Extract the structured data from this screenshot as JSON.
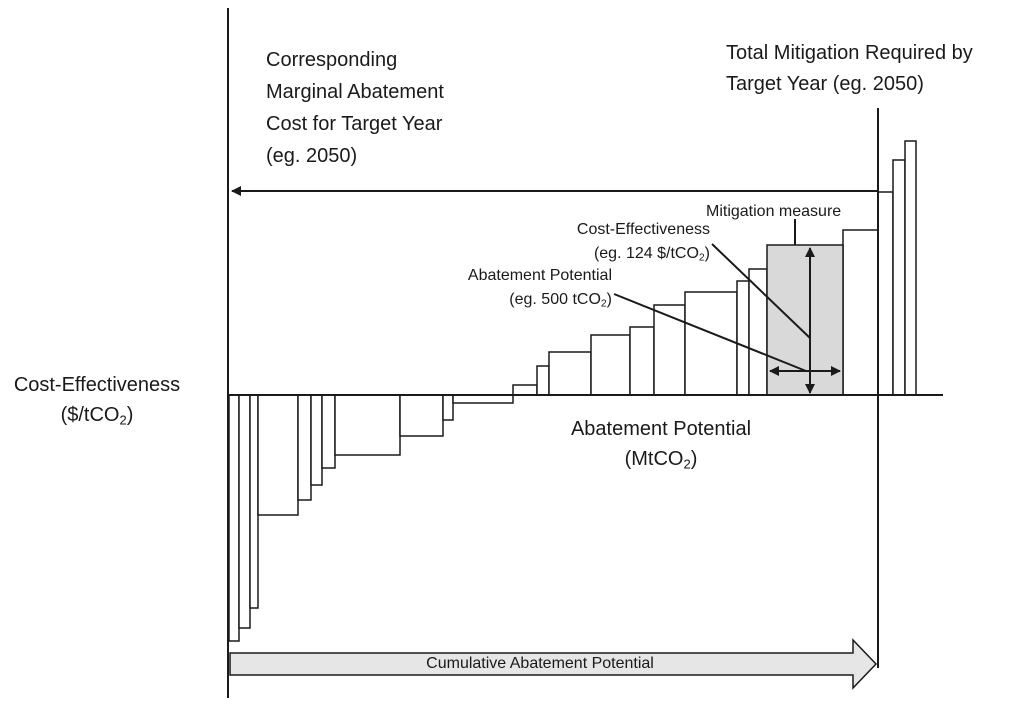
{
  "labels": {
    "corresponding_cost": [
      "Corresponding",
      "Marginal Abatement",
      "Cost for Target Year",
      "(eg. 2050)"
    ],
    "total_mitigation": [
      "Total Mitigation Required by",
      "Target Year (eg. 2050)"
    ],
    "y_axis": {
      "line1": "Cost-Effectiveness",
      "line2_pre": "($/tCO",
      "line2_sub": "2",
      "line2_post": ")"
    },
    "x_axis": {
      "line1": "Abatement Potential",
      "line2_pre": "(MtCO",
      "line2_sub": "2",
      "line2_post": ")"
    },
    "mitigation_measure": "Mitigation measure",
    "cost_effectiveness": {
      "line1": "Cost-Effectiveness",
      "line2_pre": "(eg. 124 $/tCO",
      "line2_sub": "2",
      "line2_post": ")"
    },
    "abatement_potential": {
      "line1": "Abatement Potential",
      "line2_pre": "(eg. 500 tCO",
      "line2_sub": "2",
      "line2_post": ")"
    },
    "cumulative": "Cumulative Abatement Potential"
  },
  "colors": {
    "line": "#1a1a1a",
    "highlight_fill": "#d9d9d9",
    "arrow_fill": "#e6e6e6",
    "bar_fill": "#ffffff"
  }
}
